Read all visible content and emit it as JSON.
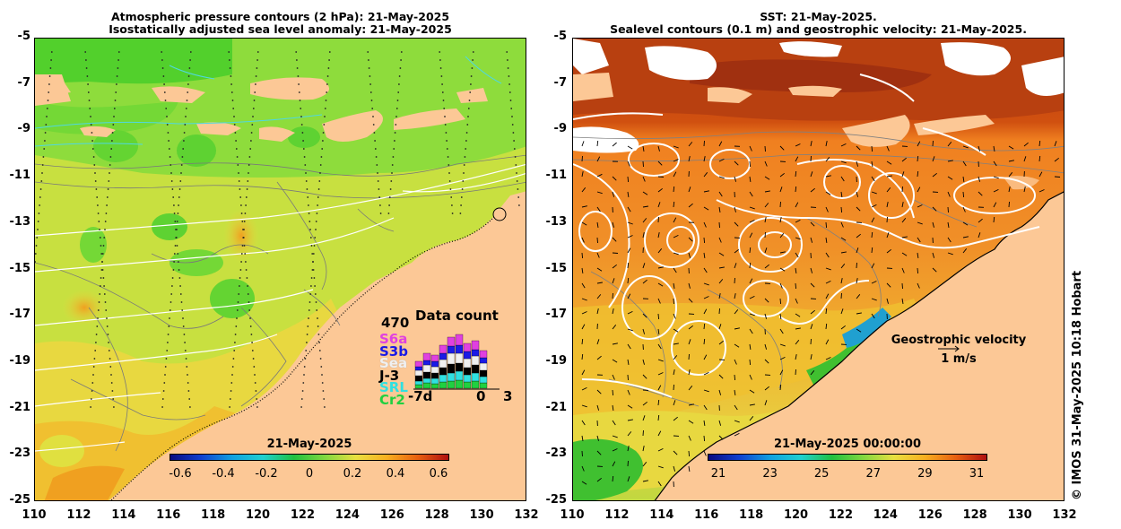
{
  "left_title": {
    "line1": "Atmospheric pressure contours (2 hPa): 21-May-2025",
    "line2": "Isostatically adjusted sea level anomaly: 21-May-2025"
  },
  "right_title": {
    "line1": "SST: 21-May-2025.",
    "line2": "Sealevel contours (0.1 m) and geostrophic velocity: 21-May-2025."
  },
  "y_ticks": [
    "-5",
    "-7",
    "-9",
    "-11",
    "-13",
    "-15",
    "-17",
    "-19",
    "-21",
    "-23",
    "-25"
  ],
  "x_ticks": [
    "110",
    "112",
    "114",
    "116",
    "118",
    "120",
    "122",
    "124",
    "126",
    "128",
    "130",
    "132"
  ],
  "left_colorbar": {
    "title": "21-May-2025",
    "ticks": [
      "-0.6",
      "-0.4",
      "-0.2",
      "0",
      "0.2",
      "0.4",
      "0.6"
    ]
  },
  "right_colorbar": {
    "title": "21-May-2025 00:00:00",
    "ticks": [
      "21",
      "23",
      "25",
      "27",
      "29",
      "31"
    ]
  },
  "data_count": {
    "title": "Data count",
    "max": "470",
    "satellites": [
      {
        "label": "S6a",
        "color": "#e040e0"
      },
      {
        "label": "S3b",
        "color": "#1a1ae6"
      },
      {
        "label": "Sea",
        "color": "#f0f0f0"
      },
      {
        "label": "J-3",
        "color": "#000000"
      },
      {
        "label": "SRL",
        "color": "#30e0e0"
      },
      {
        "label": "Cr2",
        "color": "#20d040"
      }
    ],
    "x_labels": [
      "-7d",
      "0",
      "3"
    ]
  },
  "geostrophic": {
    "label": "Geostrophic velocity",
    "scale": "1 m/s"
  },
  "credit": "© IMOS 31-May-2025 10:18 Hobart",
  "colors": {
    "land": "#fcc896",
    "frame": "#000000"
  }
}
